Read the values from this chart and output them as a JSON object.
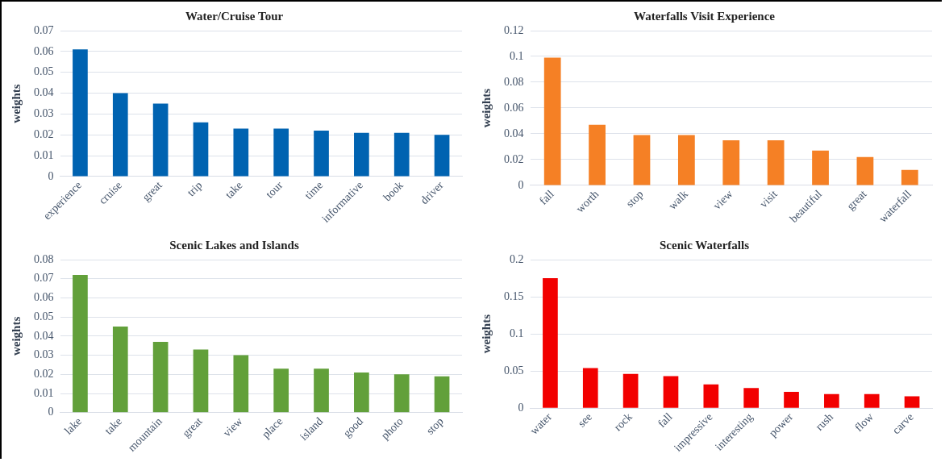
{
  "chart_data": [
    {
      "type": "bar",
      "title": "Water/Cruise Tour",
      "ylabel": "weights",
      "categories": [
        "experience",
        "cruise",
        "great",
        "trip",
        "take",
        "tour",
        "time",
        "informative",
        "book",
        "driver"
      ],
      "values": [
        0.061,
        0.04,
        0.035,
        0.026,
        0.023,
        0.023,
        0.022,
        0.021,
        0.021,
        0.02
      ],
      "color": "#0063b1",
      "ylim": [
        0,
        0.07
      ],
      "yticks": [
        0,
        0.01,
        0.02,
        0.03,
        0.04,
        0.05,
        0.06,
        0.07
      ],
      "grid": "y"
    },
    {
      "type": "bar",
      "title": "Waterfalls Visit Experience",
      "ylabel": "weights",
      "categories": [
        "fall",
        "worth",
        "stop",
        "walk",
        "view",
        "visit",
        "beautiful",
        "great",
        "waterfall"
      ],
      "values": [
        0.099,
        0.047,
        0.039,
        0.039,
        0.035,
        0.035,
        0.027,
        0.022,
        0.012
      ],
      "color": "#f58025",
      "ylim": [
        0,
        0.12
      ],
      "yticks": [
        0,
        0.02,
        0.04,
        0.06,
        0.08,
        0.1,
        0.12
      ],
      "grid": "y"
    },
    {
      "type": "bar",
      "title": "Scenic Lakes and Islands",
      "ylabel": "weights",
      "categories": [
        "lake",
        "take",
        "mountain",
        "great",
        "view",
        "place",
        "island",
        "good",
        "photo",
        "stop"
      ],
      "values": [
        0.072,
        0.045,
        0.037,
        0.033,
        0.03,
        0.023,
        0.023,
        0.021,
        0.02,
        0.019
      ],
      "color": "#62a03a",
      "ylim": [
        0,
        0.08
      ],
      "yticks": [
        0,
        0.01,
        0.02,
        0.03,
        0.04,
        0.05,
        0.06,
        0.07,
        0.08
      ],
      "grid": "y"
    },
    {
      "type": "bar",
      "title": "Scenic Waterfalls",
      "ylabel": "weights",
      "categories": [
        "water",
        "see",
        "rock",
        "fall",
        "impressive",
        "interesting",
        "power",
        "rush",
        "flow",
        "carve"
      ],
      "values": [
        0.175,
        0.054,
        0.046,
        0.043,
        0.032,
        0.027,
        0.022,
        0.019,
        0.019,
        0.016
      ],
      "color": "#f20000",
      "ylim": [
        0,
        0.2
      ],
      "yticks": [
        0,
        0.05,
        0.1,
        0.15,
        0.2
      ],
      "grid": "y"
    }
  ]
}
